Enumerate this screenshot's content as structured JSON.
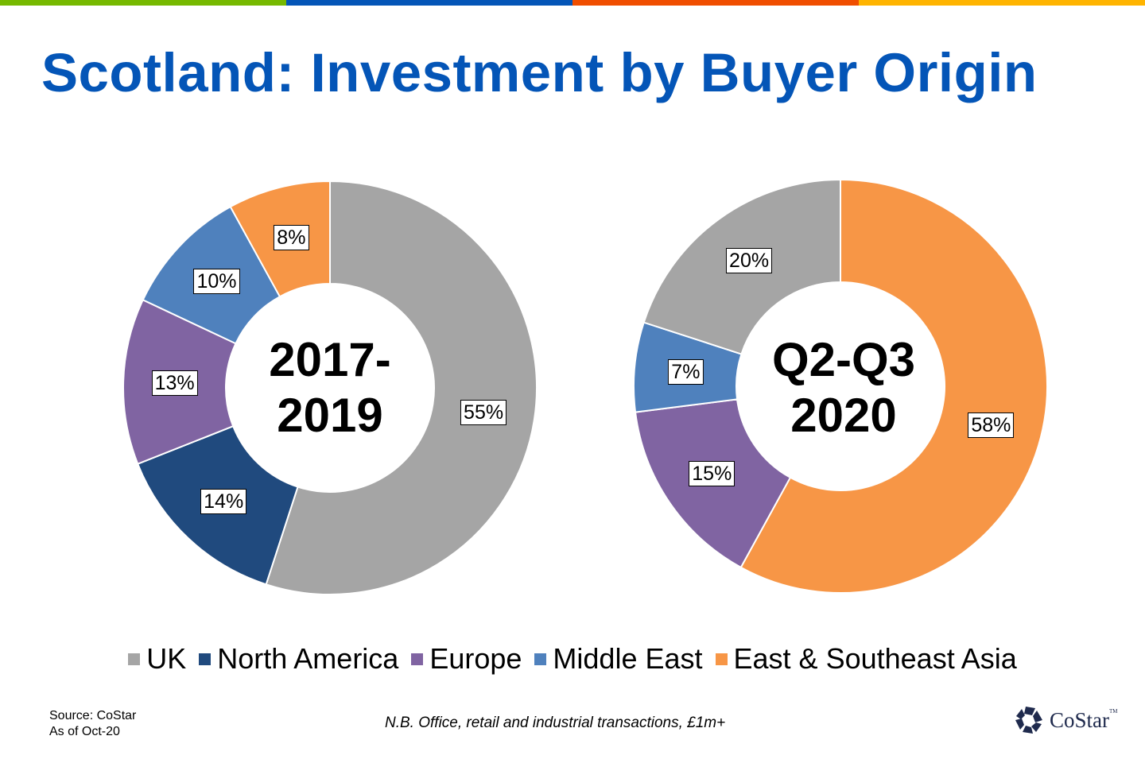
{
  "slide": {
    "title": "Scotland: Investment by Buyer Origin",
    "topbar_colors": [
      "#76b900",
      "#0455b7",
      "#f04e00",
      "#ffb400"
    ],
    "source_line1": "Source: CoStar",
    "source_line2": "As of Oct-20",
    "note": "N.B. Office, retail and industrial transactions, £1m+",
    "logo_text": "CoStar",
    "logo_tm": "TM"
  },
  "legend": [
    {
      "label": "UK",
      "color": "#a5a5a5"
    },
    {
      "label": "North America",
      "color": "#204a7e"
    },
    {
      "label": "Europe",
      "color": "#8064a2"
    },
    {
      "label": "Middle East",
      "color": "#4f81bd"
    },
    {
      "label": "East & Southeast Asia",
      "color": "#f79646"
    }
  ],
  "chart_data": [
    {
      "type": "pie",
      "subtype": "donut",
      "title": "2017-2019",
      "center_line1": "2017-",
      "center_line2": "2019",
      "categories": [
        "UK",
        "North America",
        "Europe",
        "Middle East",
        "East & Southeast Asia"
      ],
      "values": [
        55,
        14,
        13,
        10,
        8
      ],
      "labels": [
        "55%",
        "14%",
        "13%",
        "10%",
        "8%"
      ],
      "colors": [
        "#a5a5a5",
        "#204a7e",
        "#8064a2",
        "#4f81bd",
        "#f79646"
      ],
      "legend_position": "bottom"
    },
    {
      "type": "pie",
      "subtype": "donut",
      "title": "Q2-Q3 2020",
      "center_line1": "Q2-Q3",
      "center_line2": "2020",
      "categories": [
        "East & Southeast Asia",
        "North America",
        "Europe",
        "Middle East",
        "UK"
      ],
      "values": [
        58,
        0,
        15,
        7,
        20
      ],
      "labels": [
        "58%",
        "",
        "15%",
        "7%",
        "20%"
      ],
      "colors": [
        "#f79646",
        "#204a7e",
        "#8064a2",
        "#4f81bd",
        "#a5a5a5"
      ],
      "legend_position": "bottom"
    }
  ]
}
